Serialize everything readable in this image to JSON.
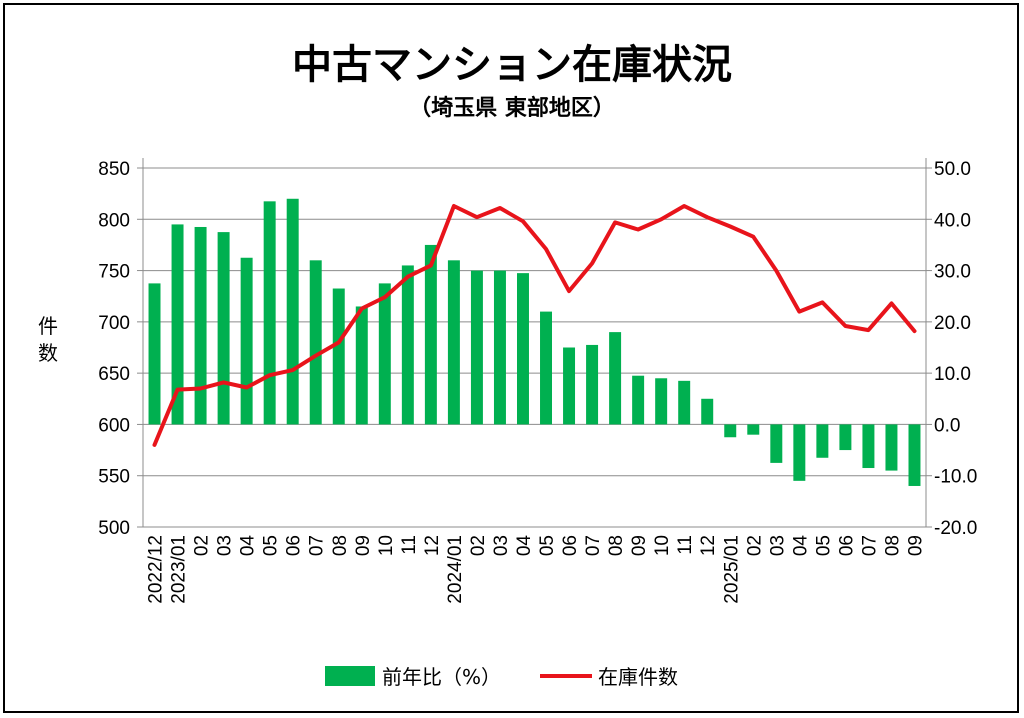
{
  "chart_data": {
    "type": "bar+line",
    "title": "中古マンション在庫状況",
    "subtitle": "（埼玉県 東部地区）",
    "ylabel_left": "件数",
    "categories": [
      "2022/12",
      "2023/01",
      "02",
      "03",
      "04",
      "05",
      "06",
      "07",
      "08",
      "09",
      "10",
      "11",
      "12",
      "2024/01",
      "02",
      "03",
      "04",
      "05",
      "06",
      "07",
      "08",
      "09",
      "10",
      "11",
      "12",
      "2025/01",
      "02",
      "03",
      "04",
      "05",
      "06",
      "07",
      "08",
      "09"
    ],
    "y_left": {
      "min": 500,
      "max": 850,
      "ticks": [
        "500",
        "550",
        "600",
        "650",
        "700",
        "750",
        "800",
        "850"
      ]
    },
    "y_right": {
      "min": -20,
      "max": 50,
      "ticks": [
        "-20.0",
        "-10.0",
        "0.0",
        "10.0",
        "20.0",
        "30.0",
        "40.0",
        "50.0"
      ]
    },
    "series": [
      {
        "name": "前年比（%）",
        "type": "bar",
        "axis": "right",
        "color": "#00b050",
        "values": [
          27.5,
          39.0,
          38.5,
          37.5,
          32.5,
          43.5,
          44.0,
          32.0,
          26.5,
          23.0,
          27.5,
          31.0,
          35.0,
          32.0,
          30.0,
          30.0,
          29.5,
          22.0,
          15.0,
          15.5,
          18.0,
          9.5,
          9.0,
          8.5,
          5.0,
          -2.5,
          -2.0,
          -7.5,
          -11.0,
          -6.5,
          -5.0,
          -8.5,
          -9.0,
          -12.0
        ]
      },
      {
        "name": "在庫件数",
        "type": "line",
        "axis": "left",
        "color": "#e8141b",
        "values": [
          580,
          634,
          635,
          641,
          636,
          648,
          653,
          667,
          680,
          713,
          724,
          744,
          755,
          813,
          802,
          811,
          798,
          771,
          730,
          757,
          797,
          790,
          800,
          813,
          802,
          793,
          783,
          750,
          710,
          719,
          696,
          692,
          718,
          691
        ]
      }
    ],
    "legend": "bottom",
    "grid": true
  }
}
